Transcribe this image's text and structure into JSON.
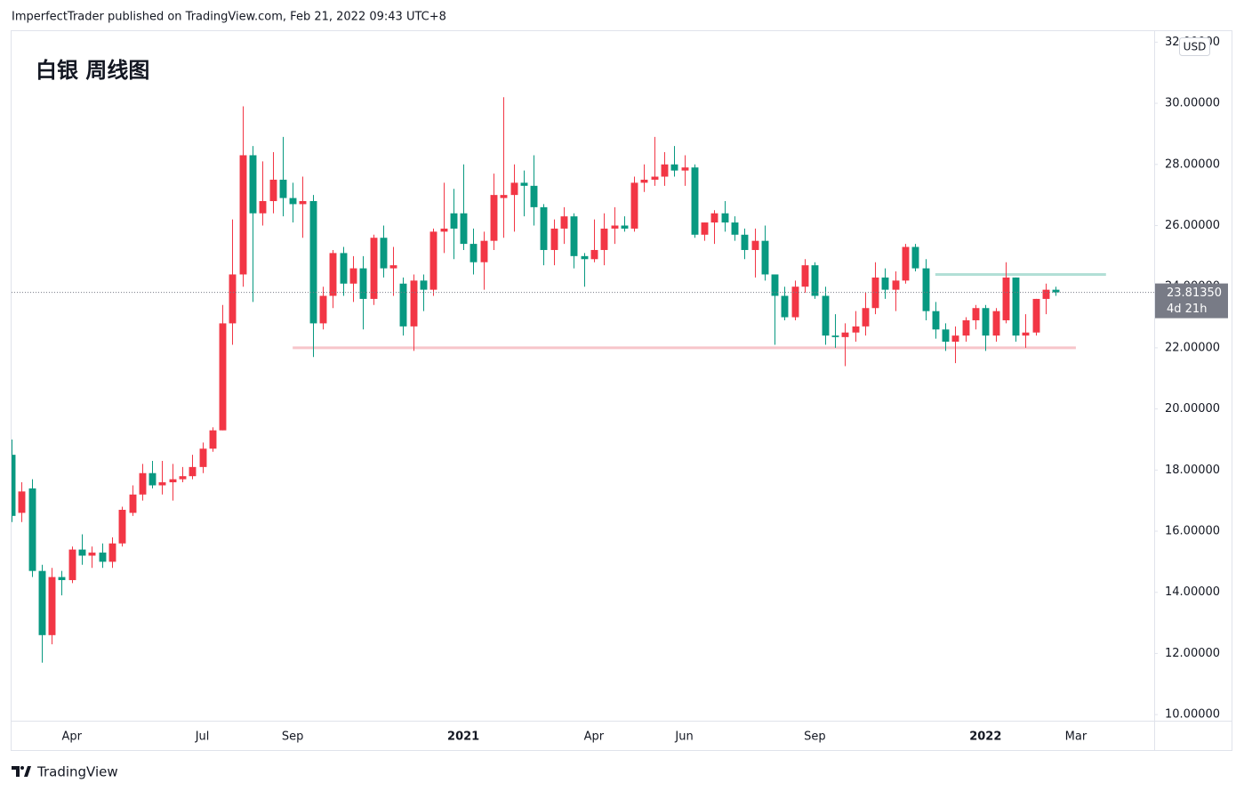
{
  "header": {
    "attribution": "ImperfectTrader published on TradingView.com, Feb 21, 2022 09:43 UTC+8"
  },
  "footer": {
    "brand": "TradingView"
  },
  "chart_data": {
    "type": "candlestick",
    "title": "白银 周线图",
    "currency": "USD",
    "up_color": "#f23645",
    "down_color": "#089981",
    "open": [
      18.5,
      16.6,
      17.4,
      14.7,
      12.6,
      14.5,
      14.4,
      15.4,
      15.2,
      15.3,
      15.0,
      15.6,
      16.6,
      17.2,
      17.9,
      17.5,
      17.6,
      17.7,
      17.8,
      18.1,
      18.7,
      19.3,
      22.8,
      24.4,
      28.3,
      26.4,
      26.8,
      27.5,
      26.9,
      26.7,
      26.8,
      22.8,
      23.7,
      25.1,
      24.1,
      24.6,
      23.6,
      25.6,
      24.6,
      24.1,
      22.7,
      24.2,
      23.9,
      25.8,
      26.4,
      26.4,
      25.4,
      24.8,
      25.5,
      26.9,
      27.0,
      27.4,
      27.3,
      26.6,
      25.2,
      25.9,
      26.3,
      25.0,
      24.9,
      25.2,
      25.9,
      26.0,
      25.9,
      27.4,
      27.5,
      27.6,
      28.0,
      27.8,
      27.9,
      25.7,
      26.1,
      26.4,
      26.1,
      25.7,
      25.2,
      25.5,
      24.4,
      23.7,
      23.0,
      24.0,
      24.7,
      23.7,
      22.4,
      22.35,
      22.5,
      22.7,
      23.3,
      24.3,
      23.9,
      24.2,
      25.3,
      24.6,
      23.2,
      22.6,
      22.2,
      22.4,
      22.9,
      23.3,
      22.4,
      22.9,
      24.3,
      22.4,
      22.5,
      23.6,
      23.9
    ],
    "high": [
      19.0,
      17.6,
      17.7,
      14.9,
      14.8,
      14.7,
      15.5,
      15.9,
      15.5,
      15.6,
      15.8,
      16.8,
      17.5,
      18.2,
      18.3,
      18.3,
      18.2,
      18.1,
      18.5,
      18.9,
      19.4,
      23.4,
      26.2,
      29.9,
      28.6,
      28.1,
      28.4,
      28.9,
      27.4,
      27.6,
      27.0,
      24.0,
      25.2,
      25.3,
      25.0,
      25.0,
      25.7,
      26.0,
      25.3,
      24.3,
      24.4,
      24.4,
      25.9,
      27.4,
      27.2,
      28.0,
      25.9,
      25.8,
      27.7,
      30.2,
      28.0,
      27.8,
      28.3,
      26.7,
      26.2,
      26.6,
      26.4,
      25.1,
      26.2,
      26.4,
      26.6,
      26.3,
      27.6,
      28.0,
      28.9,
      28.4,
      28.6,
      28.3,
      28.0,
      26.1,
      26.5,
      26.8,
      26.3,
      25.9,
      25.9,
      26.0,
      24.4,
      24.0,
      24.2,
      24.9,
      24.8,
      24.0,
      23.1,
      22.8,
      23.2,
      23.8,
      24.8,
      24.6,
      24.5,
      25.4,
      25.4,
      24.9,
      23.5,
      22.8,
      22.7,
      23.0,
      23.4,
      23.4,
      23.3,
      24.8,
      24.3,
      23.1,
      23.6,
      24.1,
      24.0
    ],
    "low": [
      16.3,
      16.3,
      14.5,
      11.7,
      12.3,
      13.9,
      14.3,
      14.9,
      14.8,
      14.8,
      14.8,
      15.5,
      16.5,
      17.0,
      17.4,
      17.2,
      17.0,
      17.6,
      17.7,
      17.9,
      18.6,
      19.3,
      22.1,
      24.0,
      23.5,
      26.0,
      26.4,
      26.3,
      26.1,
      25.6,
      21.7,
      22.6,
      23.3,
      23.7,
      23.5,
      22.6,
      23.4,
      24.3,
      23.7,
      22.4,
      21.9,
      23.2,
      23.7,
      25.1,
      24.9,
      25.2,
      24.4,
      23.9,
      25.2,
      25.6,
      25.8,
      26.3,
      26.0,
      24.7,
      24.7,
      25.4,
      24.6,
      24.0,
      24.8,
      24.7,
      25.4,
      25.8,
      25.8,
      27.1,
      27.3,
      27.3,
      27.6,
      27.3,
      25.6,
      25.5,
      25.4,
      25.8,
      25.5,
      24.9,
      24.3,
      24.2,
      22.1,
      22.9,
      22.9,
      23.8,
      23.6,
      22.1,
      22.0,
      21.4,
      22.2,
      22.4,
      23.1,
      23.6,
      23.2,
      24.1,
      24.5,
      22.9,
      22.3,
      21.9,
      21.5,
      22.2,
      22.6,
      21.9,
      22.2,
      22.8,
      22.2,
      22.0,
      22.4,
      23.1,
      23.7
    ],
    "close": [
      16.5,
      17.3,
      14.7,
      12.6,
      14.5,
      14.4,
      15.4,
      15.2,
      15.3,
      15.0,
      15.6,
      16.7,
      17.2,
      17.9,
      17.5,
      17.6,
      17.7,
      17.8,
      18.1,
      18.7,
      19.3,
      22.8,
      24.4,
      28.3,
      26.4,
      26.8,
      27.5,
      26.9,
      26.7,
      26.8,
      22.8,
      23.7,
      25.1,
      24.1,
      24.6,
      23.6,
      25.6,
      24.6,
      24.7,
      22.7,
      24.2,
      23.9,
      25.8,
      25.9,
      25.9,
      25.4,
      24.8,
      25.5,
      27.0,
      27.0,
      27.4,
      27.3,
      26.6,
      25.2,
      25.9,
      26.3,
      25.0,
      24.9,
      25.2,
      25.9,
      26.0,
      25.9,
      27.4,
      27.5,
      27.6,
      28.0,
      27.8,
      27.9,
      25.7,
      26.1,
      26.4,
      26.1,
      25.7,
      25.2,
      25.5,
      24.4,
      23.7,
      23.0,
      24.0,
      24.7,
      23.7,
      22.4,
      22.35,
      22.5,
      22.7,
      23.3,
      24.3,
      23.9,
      24.2,
      25.3,
      24.6,
      23.2,
      22.6,
      22.2,
      22.4,
      22.9,
      23.3,
      22.4,
      23.2,
      24.3,
      22.4,
      22.5,
      23.6,
      23.9,
      23.8135
    ],
    "last_price": {
      "value": 23.8135,
      "label": "23.81350"
    },
    "countdown": "4d 21h",
    "levels": [
      {
        "value": 22.0,
        "from": 28,
        "to": 106,
        "color": "#f7c5ca"
      },
      {
        "value": 24.4,
        "from": 92,
        "to": 109,
        "color": "#b2dfd6"
      }
    ],
    "xlim": [
      0,
      113.8
    ],
    "ylim": [
      9.8,
      32.36
    ],
    "xticks": [
      {
        "value": 6,
        "label": "Apr"
      },
      {
        "value": 19,
        "label": "Jul"
      },
      {
        "value": 28,
        "label": "Sep"
      },
      {
        "value": 45,
        "label": "2021"
      },
      {
        "value": 58,
        "label": "Apr"
      },
      {
        "value": 67,
        "label": "Jun"
      },
      {
        "value": 80,
        "label": "Sep"
      },
      {
        "value": 97,
        "label": "2022"
      },
      {
        "value": 106,
        "label": "Mar"
      }
    ],
    "yticks": [
      {
        "value": 10,
        "label": "10.00000"
      },
      {
        "value": 12,
        "label": "12.00000"
      },
      {
        "value": 14,
        "label": "14.00000"
      },
      {
        "value": 16,
        "label": "16.00000"
      },
      {
        "value": 18,
        "label": "18.00000"
      },
      {
        "value": 20,
        "label": "20.00000"
      },
      {
        "value": 22,
        "label": "22.00000"
      },
      {
        "value": 24,
        "label": "24.00000"
      },
      {
        "value": 26,
        "label": "26.00000"
      },
      {
        "value": 28,
        "label": "28.00000"
      },
      {
        "value": 30,
        "label": "30.00000"
      },
      {
        "value": 32,
        "label": "32.00000"
      }
    ],
    "grid": false
  }
}
